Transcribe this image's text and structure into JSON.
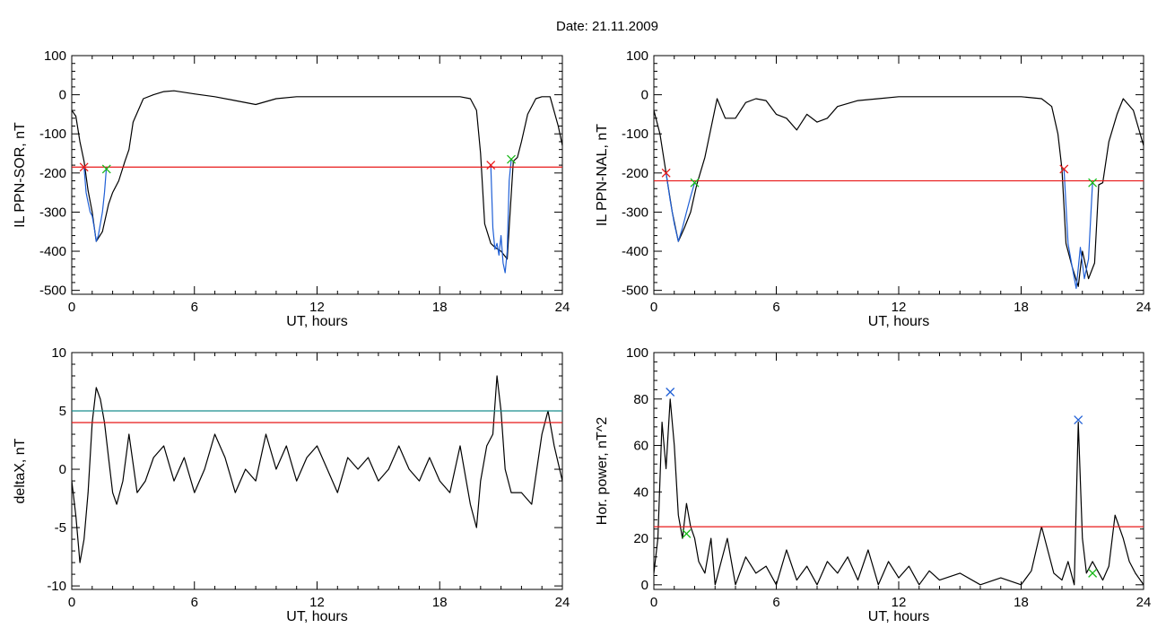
{
  "figure": {
    "title": "Date:  21.11.2009"
  },
  "colors": {
    "black": "#000000",
    "red": "#e81818",
    "blue": "#1f5fd6",
    "green": "#18b818",
    "teal": "#1a8f8f"
  },
  "chart_data": [
    {
      "id": "panel-1",
      "type": "line",
      "xlabel": "UT, hours",
      "ylabel": "IL PPN-SOR, nT",
      "xlim": [
        0,
        24
      ],
      "ylim": [
        -510,
        100
      ],
      "xticks": [
        0,
        6,
        12,
        18,
        24
      ],
      "yticks": [
        100,
        0,
        -100,
        -200,
        -300,
        -400,
        -500
      ],
      "series": [
        {
          "color": "#000000",
          "x": [
            0,
            0.2,
            0.4,
            0.6,
            0.8,
            1.0,
            1.2,
            1.5,
            1.8,
            2.0,
            2.3,
            2.6,
            2.8,
            3.0,
            3.5,
            4.0,
            4.5,
            5,
            6,
            7,
            8,
            9,
            10,
            11,
            12,
            14,
            16,
            18,
            19,
            19.5,
            19.8,
            20.0,
            20.2,
            20.5,
            20.7,
            21.0,
            21.3,
            21.6,
            21.8,
            22.0,
            22.3,
            22.7,
            23.0,
            23.4,
            23.8,
            24
          ],
          "y": [
            -40,
            -55,
            -120,
            -170,
            -245,
            -300,
            -375,
            -350,
            -280,
            -250,
            -220,
            -170,
            -140,
            -70,
            -10,
            0,
            8,
            10,
            2,
            -5,
            -15,
            -25,
            -10,
            -5,
            -5,
            -5,
            -5,
            -5,
            -5,
            -10,
            -40,
            -150,
            -330,
            -380,
            -390,
            -400,
            -420,
            -170,
            -160,
            -120,
            -50,
            -10,
            -5,
            -5,
            -80,
            -130
          ]
        },
        {
          "color": "#1f5fd6",
          "x": [
            0.6,
            0.7,
            0.8,
            0.9,
            1.0,
            1.1,
            1.2,
            1.3,
            1.4,
            1.5,
            1.6,
            1.7
          ],
          "y": [
            -185,
            -250,
            -275,
            -300,
            -310,
            -340,
            -375,
            -360,
            -330,
            -300,
            -250,
            -185
          ]
        },
        {
          "color": "#1f5fd6",
          "x": [
            20.5,
            20.6,
            20.7,
            20.8,
            20.9,
            21.0,
            21.1,
            21.2,
            21.3,
            21.4,
            21.5
          ],
          "y": [
            -180,
            -340,
            -395,
            -380,
            -410,
            -360,
            -430,
            -455,
            -400,
            -220,
            -165
          ]
        }
      ],
      "hlines": [
        {
          "y": -185,
          "color": "#e81818"
        }
      ],
      "markers": [
        {
          "x": 0.6,
          "y": -185,
          "color": "#e81818"
        },
        {
          "x": 1.7,
          "y": -190,
          "color": "#18b818"
        },
        {
          "x": 20.5,
          "y": -180,
          "color": "#e81818"
        },
        {
          "x": 21.5,
          "y": -165,
          "color": "#18b818"
        }
      ]
    },
    {
      "id": "panel-2",
      "type": "line",
      "xlabel": "UT, hours",
      "ylabel": "IL PPN-NAL, nT",
      "xlim": [
        0,
        24
      ],
      "ylim": [
        -510,
        100
      ],
      "xticks": [
        0,
        6,
        12,
        18,
        24
      ],
      "yticks": [
        100,
        0,
        -100,
        -200,
        -300,
        -400,
        -500
      ],
      "series": [
        {
          "color": "#000000",
          "x": [
            0,
            0.3,
            0.6,
            0.9,
            1.2,
            1.5,
            1.8,
            2.1,
            2.5,
            2.9,
            3.1,
            3.5,
            4.0,
            4.5,
            5.0,
            5.5,
            6.0,
            6.5,
            7.0,
            7.5,
            8.0,
            8.5,
            9.0,
            10,
            11,
            12,
            13,
            14,
            16,
            18,
            19,
            19.5,
            19.8,
            20.0,
            20.2,
            20.5,
            20.8,
            21.0,
            21.3,
            21.6,
            21.8,
            22.0,
            22.3,
            22.7,
            23.0,
            23.5,
            24
          ],
          "y": [
            -40,
            -100,
            -200,
            -300,
            -375,
            -340,
            -300,
            -230,
            -160,
            -60,
            -10,
            -60,
            -60,
            -20,
            -10,
            -15,
            -50,
            -60,
            -90,
            -50,
            -70,
            -60,
            -30,
            -15,
            -10,
            -5,
            -5,
            -5,
            -5,
            -5,
            -10,
            -30,
            -100,
            -190,
            -380,
            -440,
            -490,
            -400,
            -470,
            -430,
            -230,
            -225,
            -120,
            -50,
            -10,
            -40,
            -130
          ]
        },
        {
          "color": "#1f5fd6",
          "x": [
            0.6,
            0.8,
            1.0,
            1.2,
            1.4,
            1.6,
            1.8,
            2.0
          ],
          "y": [
            -200,
            -270,
            -330,
            -375,
            -340,
            -300,
            -260,
            -225
          ]
        },
        {
          "color": "#1f5fd6",
          "x": [
            20.1,
            20.3,
            20.5,
            20.7,
            20.9,
            21.1,
            21.3,
            21.5
          ],
          "y": [
            -190,
            -380,
            -440,
            -495,
            -390,
            -470,
            -420,
            -225
          ]
        }
      ],
      "hlines": [
        {
          "y": -220,
          "color": "#e81818"
        }
      ],
      "markers": [
        {
          "x": 0.6,
          "y": -200,
          "color": "#e81818"
        },
        {
          "x": 2.0,
          "y": -225,
          "color": "#18b818"
        },
        {
          "x": 20.1,
          "y": -190,
          "color": "#e81818"
        },
        {
          "x": 21.5,
          "y": -225,
          "color": "#18b818"
        }
      ]
    },
    {
      "id": "panel-3",
      "type": "line",
      "xlabel": "UT, hours",
      "ylabel": "deltaX, nT",
      "xlim": [
        0,
        24
      ],
      "ylim": [
        -10.3,
        10
      ],
      "xticks": [
        0,
        6,
        12,
        18,
        24
      ],
      "yticks": [
        10,
        5,
        0,
        -5,
        -10
      ],
      "series": [
        {
          "color": "#000000",
          "x": [
            0,
            0.2,
            0.4,
            0.6,
            0.8,
            1.0,
            1.2,
            1.4,
            1.6,
            1.8,
            2.0,
            2.2,
            2.5,
            2.8,
            3.2,
            3.6,
            4.0,
            4.5,
            5.0,
            5.5,
            6.0,
            6.5,
            7.0,
            7.5,
            8.0,
            8.5,
            9.0,
            9.5,
            10.0,
            10.5,
            11,
            11.5,
            12,
            12.5,
            13,
            13.5,
            14,
            14.5,
            15,
            15.5,
            16,
            16.5,
            17,
            17.5,
            18,
            18.5,
            19,
            19.5,
            19.8,
            20.0,
            20.3,
            20.6,
            20.8,
            21.0,
            21.2,
            21.5,
            22.0,
            22.5,
            23.0,
            23.3,
            23.6,
            24
          ],
          "y": [
            -1,
            -4,
            -8,
            -6,
            -2,
            4,
            7,
            6,
            4,
            1,
            -2,
            -3,
            -1,
            3,
            -2,
            -1,
            1,
            2,
            -1,
            1,
            -2,
            0,
            3,
            1,
            -2,
            0,
            -1,
            3,
            0,
            2,
            -1,
            1,
            2,
            0,
            -2,
            1,
            0,
            1,
            -1,
            0,
            2,
            0,
            -1,
            1,
            -1,
            -2,
            2,
            -3,
            -5,
            -1,
            2,
            3,
            8,
            5,
            0,
            -2,
            -2,
            -3,
            3,
            5,
            2,
            -1
          ]
        }
      ],
      "hlines": [
        {
          "y": 5,
          "color": "#1a8f8f"
        },
        {
          "y": 4,
          "color": "#e81818"
        }
      ],
      "markers": []
    },
    {
      "id": "panel-4",
      "type": "line",
      "xlabel": "UT, hours",
      "ylabel": "Hor. power, nT^2",
      "xlim": [
        0,
        24
      ],
      "ylim": [
        -2,
        100
      ],
      "xticks": [
        0,
        6,
        12,
        18,
        24
      ],
      "yticks": [
        100,
        80,
        60,
        40,
        20,
        0
      ],
      "series": [
        {
          "color": "#000000",
          "x": [
            0,
            0.2,
            0.4,
            0.6,
            0.8,
            1.0,
            1.2,
            1.4,
            1.6,
            1.8,
            2.0,
            2.2,
            2.5,
            2.8,
            3.0,
            3.3,
            3.6,
            4.0,
            4.5,
            5.0,
            5.5,
            6.0,
            6.5,
            7.0,
            7.5,
            8.0,
            8.5,
            9.0,
            9.5,
            10,
            10.5,
            11,
            11.5,
            12,
            12.5,
            13,
            13.5,
            14,
            15,
            16,
            17,
            18,
            18.5,
            19,
            19.3,
            19.6,
            20.0,
            20.3,
            20.6,
            20.8,
            21.0,
            21.2,
            21.5,
            22.0,
            22.3,
            22.6,
            23.0,
            23.3,
            23.6,
            24
          ],
          "y": [
            5,
            20,
            70,
            50,
            80,
            60,
            30,
            20,
            35,
            25,
            20,
            10,
            5,
            20,
            0,
            10,
            20,
            0,
            12,
            5,
            8,
            0,
            15,
            2,
            8,
            0,
            10,
            5,
            12,
            2,
            15,
            0,
            10,
            3,
            8,
            0,
            6,
            2,
            5,
            0,
            3,
            0,
            6,
            25,
            15,
            5,
            2,
            10,
            0,
            70,
            20,
            5,
            10,
            2,
            8,
            30,
            20,
            10,
            5,
            0
          ]
        }
      ],
      "hlines": [
        {
          "y": 25,
          "color": "#e81818"
        }
      ],
      "markers": [
        {
          "x": 0.8,
          "y": 83,
          "color": "#1f5fd6"
        },
        {
          "x": 1.6,
          "y": 22,
          "color": "#18b818"
        },
        {
          "x": 20.8,
          "y": 71,
          "color": "#1f5fd6"
        },
        {
          "x": 21.5,
          "y": 5,
          "color": "#18b818"
        }
      ]
    }
  ]
}
